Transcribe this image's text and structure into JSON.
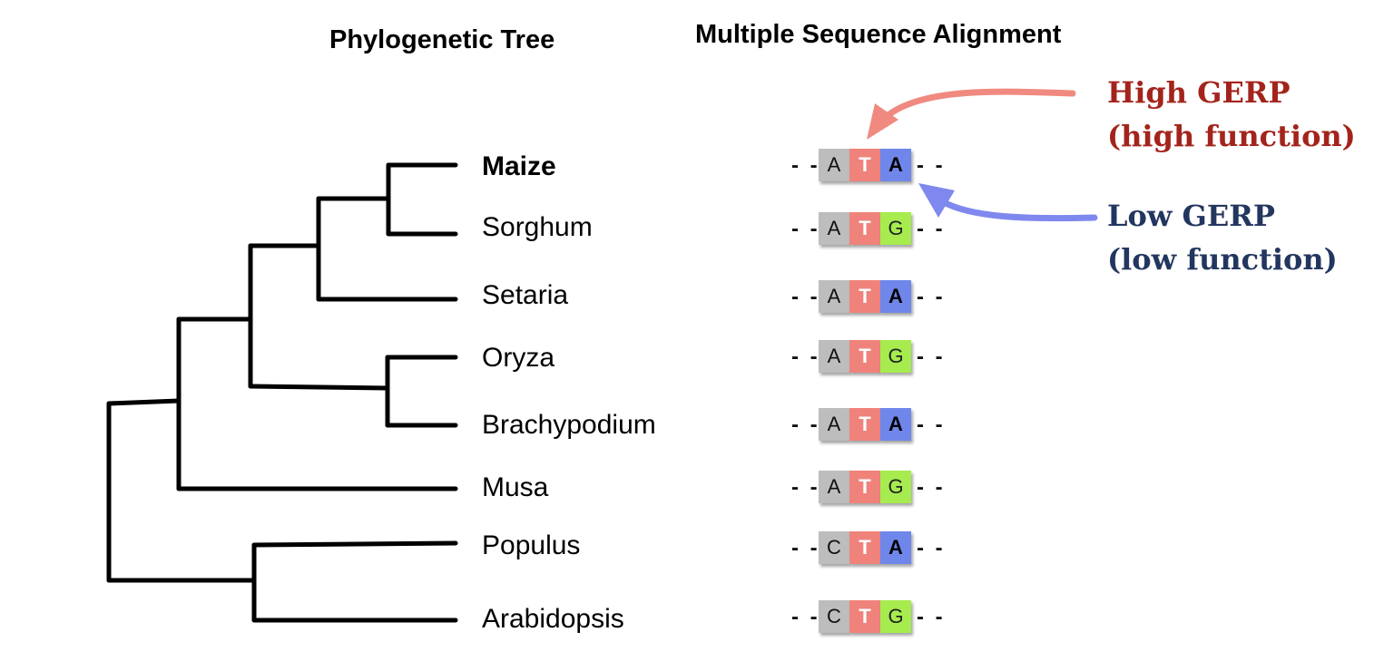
{
  "headers": {
    "tree": "Phylogenetic Tree",
    "msa": "Multiple Sequence Alignment"
  },
  "species": [
    {
      "name": "Maize",
      "bold": true
    },
    {
      "name": "Sorghum",
      "bold": false
    },
    {
      "name": "Setaria",
      "bold": false
    },
    {
      "name": "Oryza",
      "bold": false
    },
    {
      "name": "Brachypodium",
      "bold": false
    },
    {
      "name": "Musa",
      "bold": false
    },
    {
      "name": "Populus",
      "bold": false
    },
    {
      "name": "Arabidopsis",
      "bold": false
    }
  ],
  "alignment": {
    "flank": "- -",
    "rows": [
      [
        "A",
        "T",
        "A"
      ],
      [
        "A",
        "T",
        "G"
      ],
      [
        "A",
        "T",
        "A"
      ],
      [
        "A",
        "T",
        "G"
      ],
      [
        "A",
        "T",
        "A"
      ],
      [
        "A",
        "T",
        "G"
      ],
      [
        "C",
        "T",
        "A"
      ],
      [
        "C",
        "T",
        "G"
      ]
    ]
  },
  "callouts": {
    "high": {
      "line1": "High GERP",
      "line2": "(high function)",
      "color": "#a3241c"
    },
    "low": {
      "line1": "Low GERP",
      "line2": "(low function)",
      "color": "#23365f"
    }
  },
  "colors": {
    "base_A_C": "#bdbdbd",
    "base_T": "#ef837b",
    "base_A_variable": "#6f86ea",
    "base_G": "#a6ec4e",
    "high_arrow": "#f08a80",
    "low_arrow": "#7f88ee"
  }
}
